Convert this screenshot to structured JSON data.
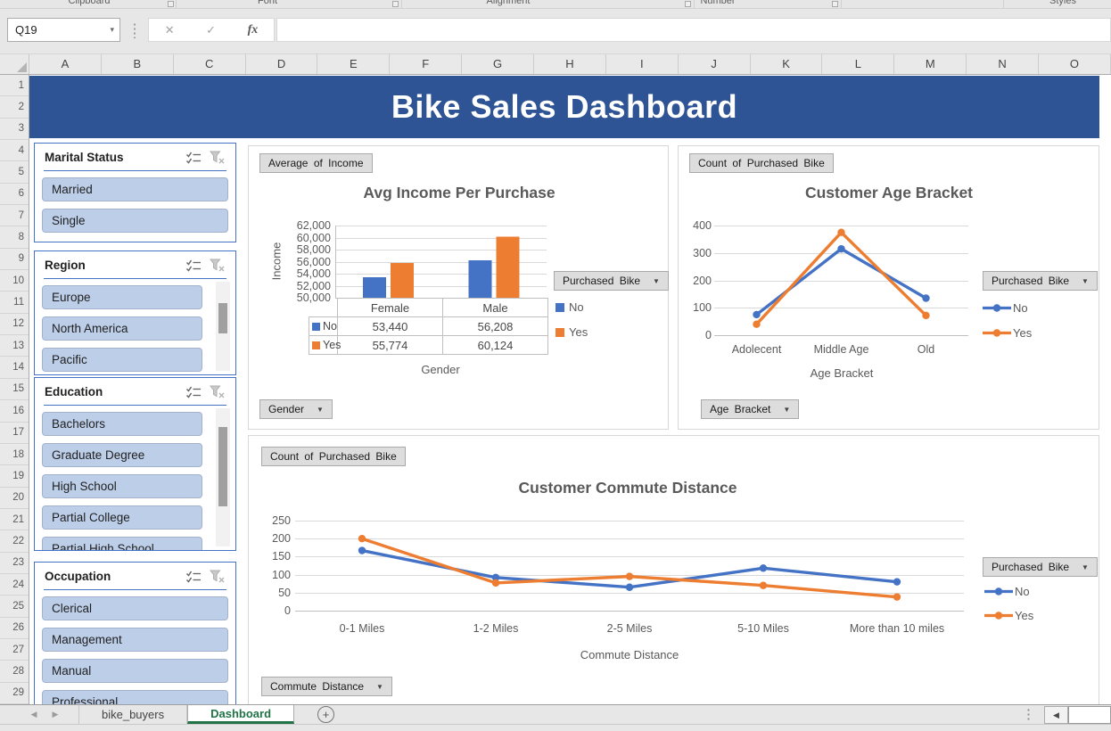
{
  "app": {
    "title": "Bike Sales Dashboard"
  },
  "ribbon_groups": [
    "Clipboard",
    "Font",
    "Alignment",
    "Number",
    "Styles"
  ],
  "formula_bar": {
    "name_box": "Q19",
    "formula": ""
  },
  "icons": {
    "name_box_dropdown": "▾",
    "cancel": "✕",
    "enter": "✓",
    "insert_function": "fx",
    "dropdown": "▼",
    "nav_left": "◀",
    "nav_right": "▶",
    "add_sheet": "+",
    "hscroll_left": "◀"
  },
  "columns": [
    "A",
    "B",
    "C",
    "D",
    "E",
    "F",
    "G",
    "H",
    "I",
    "J",
    "K",
    "L",
    "M",
    "N",
    "O"
  ],
  "rows": [
    "1",
    "2",
    "3",
    "4",
    "5",
    "6",
    "7",
    "8",
    "9",
    "10",
    "11",
    "12",
    "13",
    "14",
    "15",
    "16",
    "17",
    "18",
    "19",
    "20",
    "21",
    "22",
    "23",
    "24",
    "25",
    "26",
    "27",
    "28",
    "29"
  ],
  "slicers": [
    {
      "title": "Marital Status",
      "items": [
        "Married",
        "Single"
      ],
      "has_scrollbar": false
    },
    {
      "title": "Region",
      "items": [
        "Europe",
        "North America",
        "Pacific"
      ],
      "has_scrollbar": true
    },
    {
      "title": "Education",
      "items": [
        "Bachelors",
        "Graduate Degree",
        "High School",
        "Partial College",
        "Partial High School"
      ],
      "has_scrollbar": true
    },
    {
      "title": "Occupation",
      "items": [
        "Clerical",
        "Management",
        "Manual",
        "Professional"
      ],
      "has_scrollbar": false
    }
  ],
  "charts": [
    {
      "value_button": "Average of Income",
      "legend_button": "Purchased Bike",
      "axis_button": "Gender"
    },
    {
      "value_button": "Count of Purchased Bike",
      "legend_button": "Purchased Bike",
      "axis_button": "Age Bracket"
    },
    {
      "value_button": "Count of Purchased Bike",
      "legend_button": "Purchased Bike",
      "axis_button": "Commute Distance"
    }
  ],
  "chart_data": [
    {
      "type": "bar",
      "title": "Avg Income Per Purchase",
      "categories": [
        "Female",
        "Male"
      ],
      "series": [
        {
          "name": "No",
          "color": "#4472C4",
          "values": [
            53440,
            56208
          ]
        },
        {
          "name": "Yes",
          "color": "#ED7D31",
          "values": [
            55774,
            60124
          ]
        }
      ],
      "xlabel": "Gender",
      "ylabel": "Income",
      "ylim": [
        50000,
        62000
      ],
      "ytick_step": 2000,
      "grid": true,
      "legend_position": "right",
      "data_table": true
    },
    {
      "type": "line",
      "title": "Customer Age Bracket",
      "categories": [
        "Adolecent",
        "Middle Age",
        "Old"
      ],
      "series": [
        {
          "name": "No",
          "color": "#4472C4",
          "values": [
            75,
            315,
            135
          ]
        },
        {
          "name": "Yes",
          "color": "#ED7D31",
          "values": [
            40,
            375,
            72
          ]
        }
      ],
      "xlabel": "Age Bracket",
      "ylabel": "",
      "ylim": [
        0,
        400
      ],
      "ytick_step": 100,
      "grid": true,
      "legend_position": "right"
    },
    {
      "type": "line",
      "title": "Customer Commute Distance",
      "categories": [
        "0-1 Miles",
        "1-2 Miles",
        "2-5 Miles",
        "5-10 Miles",
        "More than 10 miles"
      ],
      "series": [
        {
          "name": "No",
          "color": "#4472C4",
          "values": [
            167,
            92,
            65,
            118,
            80
          ]
        },
        {
          "name": "Yes",
          "color": "#ED7D31",
          "values": [
            200,
            77,
            95,
            70,
            38
          ]
        }
      ],
      "xlabel": "Commute Distance",
      "ylabel": "",
      "ylim": [
        0,
        250
      ],
      "ytick_step": 50,
      "grid": true,
      "legend_position": "right"
    }
  ],
  "sheet_tabs": {
    "tabs": [
      {
        "label": "bike_buyers",
        "active": false
      },
      {
        "label": "Dashboard",
        "active": true
      }
    ]
  },
  "colors": {
    "series_no": "#4472C4",
    "series_yes": "#ED7D31",
    "banner": "#2F5496",
    "slicer_item_fill": "#BDCEE9",
    "slicer_border": "#4472C4",
    "active_tab_green": "#217346"
  }
}
